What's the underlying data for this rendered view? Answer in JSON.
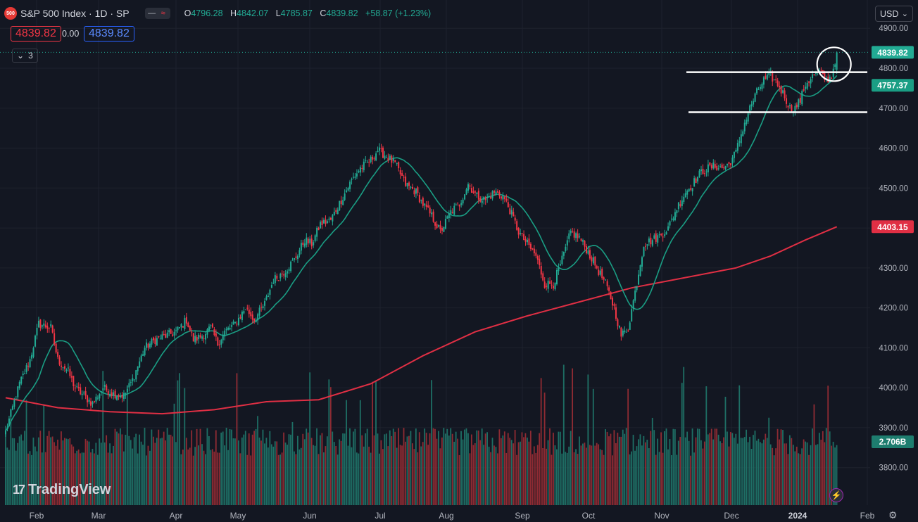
{
  "header": {
    "badge": "500",
    "symbol": "S&P 500 Index · 1D · SP",
    "open_label": "O",
    "open": "4796.28",
    "high_label": "H",
    "high": "4842.07",
    "low_label": "L",
    "low": "4785.87",
    "close_label": "C",
    "close": "4839.82",
    "change": "+58.87 (+1.23%)",
    "sell_price": "4839.82",
    "spread": "0.00",
    "buy_price": "4839.82",
    "indicators_count": "3"
  },
  "currency": "USD",
  "brand": "TradingView",
  "colors": {
    "up": "#22ab94",
    "down": "#f23645",
    "ma_short": "#1a9e84",
    "ma_long": "#e02f44",
    "background": "#131722",
    "volume_up": "#1e6f65",
    "volume_down": "#8f2b33"
  },
  "chart_data": {
    "type": "candlestick",
    "title": "S&P 500 Index · 1D · SP",
    "y_axis": {
      "ticks": [
        3800,
        3900,
        4000,
        4100,
        4200,
        4300,
        4400,
        4500,
        4600,
        4700,
        4800,
        4900
      ],
      "tick_labels": [
        "3800.00",
        "3900.00",
        "4000.00",
        "4100.00",
        "4200.00",
        "4300.00",
        "4400.00",
        "4500.00",
        "4600.00",
        "4700.00",
        "4800.00",
        "4900.00"
      ],
      "range": [
        3777,
        4924
      ]
    },
    "x_axis": {
      "labels": [
        "Feb",
        "Mar",
        "Apr",
        "May",
        "Jun",
        "Jul",
        "Aug",
        "Sep",
        "Oct",
        "Nov",
        "Dec",
        "2024",
        "Feb"
      ],
      "period": "Jan 2023 – Jan 2024 (daily)"
    },
    "price_labels": [
      {
        "value": 4839.82,
        "text": "4839.82",
        "color": "#22ab94"
      },
      {
        "value": 4757.37,
        "text": "4757.37",
        "color": "#1a9e84"
      },
      {
        "value": 4403.15,
        "text": "4403.15",
        "color": "#e02f44"
      }
    ],
    "volume_label": "2.706B",
    "anchors": [
      [
        0,
        3890
      ],
      [
        8,
        4010
      ],
      [
        14,
        4070
      ],
      [
        19,
        4160
      ],
      [
        26,
        4150
      ],
      [
        30,
        4070
      ],
      [
        36,
        4040
      ],
      [
        40,
        4000
      ],
      [
        45,
        3980
      ],
      [
        50,
        3960
      ],
      [
        56,
        4000
      ],
      [
        62,
        3985
      ],
      [
        68,
        3980
      ],
      [
        73,
        4020
      ],
      [
        80,
        4100
      ],
      [
        86,
        4120
      ],
      [
        92,
        4130
      ],
      [
        98,
        4140
      ],
      [
        104,
        4170
      ],
      [
        108,
        4120
      ],
      [
        113,
        4130
      ],
      [
        118,
        4150
      ],
      [
        122,
        4110
      ],
      [
        126,
        4140
      ],
      [
        132,
        4160
      ],
      [
        138,
        4200
      ],
      [
        143,
        4170
      ],
      [
        149,
        4210
      ],
      [
        154,
        4270
      ],
      [
        160,
        4290
      ],
      [
        166,
        4320
      ],
      [
        172,
        4370
      ],
      [
        176,
        4360
      ],
      [
        181,
        4410
      ],
      [
        187,
        4420
      ],
      [
        193,
        4470
      ],
      [
        199,
        4520
      ],
      [
        204,
        4550
      ],
      [
        210,
        4570
      ],
      [
        214,
        4595
      ],
      [
        219,
        4580
      ],
      [
        224,
        4560
      ],
      [
        230,
        4510
      ],
      [
        236,
        4490
      ],
      [
        240,
        4460
      ],
      [
        245,
        4430
      ],
      [
        250,
        4390
      ],
      [
        256,
        4440
      ],
      [
        261,
        4460
      ],
      [
        266,
        4510
      ],
      [
        271,
        4480
      ],
      [
        276,
        4470
      ],
      [
        281,
        4490
      ],
      [
        286,
        4480
      ],
      [
        290,
        4445
      ],
      [
        295,
        4390
      ],
      [
        300,
        4360
      ],
      [
        305,
        4330
      ],
      [
        310,
        4260
      ],
      [
        315,
        4260
      ],
      [
        320,
        4320
      ],
      [
        325,
        4390
      ],
      [
        330,
        4375
      ],
      [
        335,
        4340
      ],
      [
        340,
        4300
      ],
      [
        345,
        4260
      ],
      [
        350,
        4200
      ],
      [
        354,
        4130
      ],
      [
        358,
        4150
      ],
      [
        362,
        4240
      ],
      [
        367,
        4360
      ],
      [
        372,
        4370
      ],
      [
        376,
        4380
      ],
      [
        381,
        4400
      ],
      [
        386,
        4450
      ],
      [
        391,
        4490
      ],
      [
        395,
        4510
      ],
      [
        400,
        4540
      ],
      [
        404,
        4550
      ],
      [
        408,
        4555
      ],
      [
        412,
        4550
      ],
      [
        416,
        4560
      ],
      [
        420,
        4590
      ],
      [
        424,
        4650
      ],
      [
        428,
        4700
      ],
      [
        432,
        4740
      ],
      [
        436,
        4770
      ],
      [
        440,
        4780
      ],
      [
        444,
        4760
      ],
      [
        448,
        4730
      ],
      [
        451,
        4700
      ],
      [
        454,
        4700
      ],
      [
        457,
        4720
      ],
      [
        460,
        4760
      ],
      [
        464,
        4780
      ],
      [
        468,
        4790
      ],
      [
        472,
        4770
      ],
      [
        475,
        4780
      ],
      [
        478,
        4839.82
      ]
    ],
    "ma_short": {
      "name": "MA",
      "last": 4757.37
    },
    "ma_long": {
      "name": "MA",
      "last": 4403.15
    },
    "annotations": [
      {
        "type": "horizontal_line",
        "value": 4790
      },
      {
        "type": "horizontal_line",
        "value": 4690
      },
      {
        "type": "circle",
        "around": "last candle"
      }
    ],
    "grid": true
  }
}
